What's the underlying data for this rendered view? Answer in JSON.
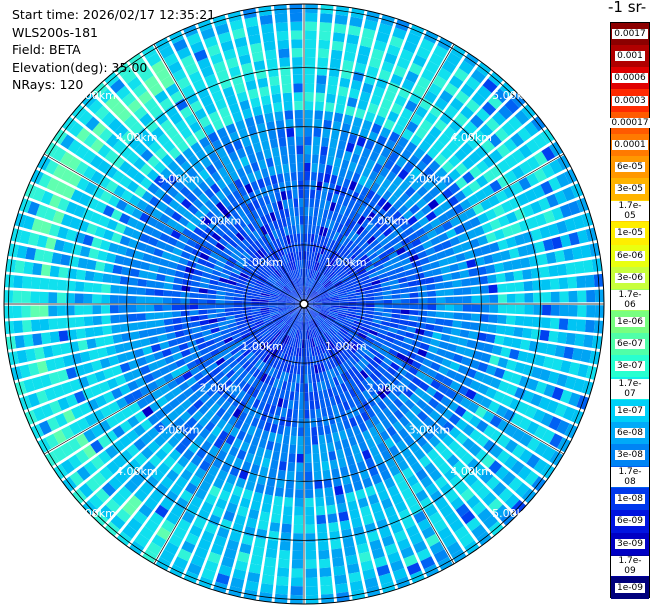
{
  "info": {
    "start_time": "Start time: 2026/02/17 12:35:21",
    "instrument": "WLS200s-181",
    "field": "Field: BETA",
    "elevation": "Elevation(deg): 35.00",
    "nrays": "NRays: 120"
  },
  "colorbar": {
    "unit_label": "-1 sr-",
    "levels": [
      {
        "label": "0.0017",
        "color": "#8b0000"
      },
      {
        "label": "0.001",
        "color": "#b00000"
      },
      {
        "label": "0.0006",
        "color": "#e00000"
      },
      {
        "label": "0.0003",
        "color": "#ff2a00"
      },
      {
        "label": "0.00017",
        "color": "#ff5a00"
      },
      {
        "label": "0.0001",
        "color": "#ff7a00"
      },
      {
        "label": "6e-05",
        "color": "#ff9800"
      },
      {
        "label": "3e-05",
        "color": "#ffb400"
      },
      {
        "label": "1.7e-05",
        "color": "#ffd200"
      },
      {
        "label": "1e-05",
        "color": "#ffee00"
      },
      {
        "label": "6e-06",
        "color": "#eaff10"
      },
      {
        "label": "3e-06",
        "color": "#c8ff3c"
      },
      {
        "label": "1.7e-06",
        "color": "#a0ff60"
      },
      {
        "label": "1e-06",
        "color": "#78ff80"
      },
      {
        "label": "6e-07",
        "color": "#50ffa8"
      },
      {
        "label": "3e-07",
        "color": "#28ffd0"
      },
      {
        "label": "1.7e-07",
        "color": "#10f0e8"
      },
      {
        "label": "1e-07",
        "color": "#00d0f8"
      },
      {
        "label": "6e-08",
        "color": "#00aaf8"
      },
      {
        "label": "3e-08",
        "color": "#0084f4"
      },
      {
        "label": "1.7e-08",
        "color": "#005ef0"
      },
      {
        "label": "1e-08",
        "color": "#0038ec"
      },
      {
        "label": "6e-09",
        "color": "#0014e0"
      },
      {
        "label": "3e-09",
        "color": "#0000c4"
      },
      {
        "label": "1.7e-09",
        "color": "#0000a0"
      },
      {
        "label": "1e-09",
        "color": "#00007c"
      }
    ]
  },
  "chart_data": {
    "type": "heatmap",
    "projection": "polar",
    "field": "BETA",
    "range_rings_km": [
      1,
      2,
      3,
      4,
      5
    ],
    "range_ring_labels": [
      "1.00km",
      "2.00km",
      "3.00km",
      "4.00km",
      "5.00km"
    ],
    "max_range_km": 5.0,
    "n_rays": 120,
    "colormap": "jet (log scale, 1e-09 to 0.0017)",
    "pattern": "blue near center; cyan ring around 3.5–4.5 km; outer edge blue/cyan"
  }
}
